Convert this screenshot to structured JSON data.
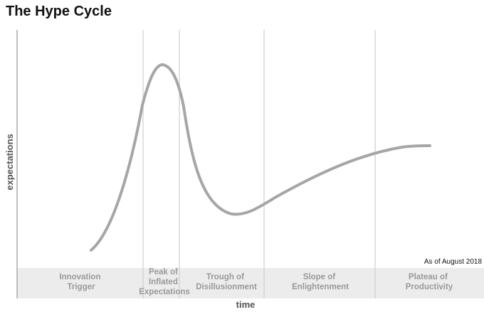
{
  "title": "The Hype Cycle",
  "axes": {
    "x_label": "time",
    "y_label": "expectations"
  },
  "note": "As of August 2018",
  "phases": [
    {
      "lines": [
        "Innovation",
        "Trigger"
      ]
    },
    {
      "lines": [
        "Peak of",
        "Inflated",
        "Expectations"
      ]
    },
    {
      "lines": [
        "Trough of",
        "Disillusionment"
      ]
    },
    {
      "lines": [
        "Slope of",
        "Enlightenment"
      ]
    },
    {
      "lines": [
        "Plateau of",
        "Productivity"
      ]
    }
  ],
  "colors": {
    "curve": "#a6a6a6",
    "band": "#ececec",
    "divider": "#cfcfcf",
    "axis": "#9a9a9a"
  }
}
